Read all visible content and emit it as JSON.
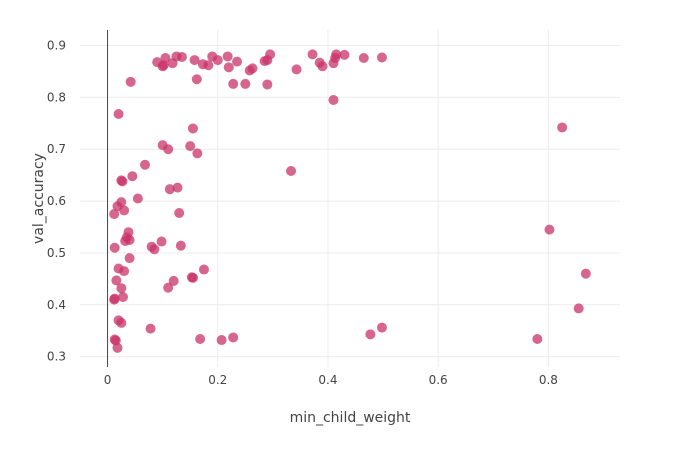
{
  "chart_data": {
    "type": "scatter",
    "title": "",
    "xlabel": "min_child_weight",
    "ylabel": "val_accuracy",
    "xlim": [
      -0.05,
      0.93
    ],
    "ylim": [
      0.28,
      0.93
    ],
    "xticks": [
      0,
      0.2,
      0.4,
      0.6,
      0.8
    ],
    "xtick_labels": [
      "0",
      "0.2",
      "0.4",
      "0.6",
      "0.8"
    ],
    "yticks": [
      0.3,
      0.4,
      0.5,
      0.6,
      0.7,
      0.8,
      0.9
    ],
    "ytick_labels": [
      "0.3",
      "0.4",
      "0.5",
      "0.6",
      "0.7",
      "0.8",
      "0.9"
    ],
    "grid": true,
    "marker_color": "#c9336a",
    "marker_opacity": 0.75,
    "series": [
      {
        "points": [
          [
            0.09,
            0.868
          ],
          [
            0.1,
            0.86
          ],
          [
            0.102,
            0.862
          ],
          [
            0.105,
            0.876
          ],
          [
            0.118,
            0.866
          ],
          [
            0.125,
            0.879
          ],
          [
            0.135,
            0.878
          ],
          [
            0.158,
            0.872
          ],
          [
            0.173,
            0.864
          ],
          [
            0.183,
            0.862
          ],
          [
            0.19,
            0.879
          ],
          [
            0.2,
            0.872
          ],
          [
            0.218,
            0.879
          ],
          [
            0.22,
            0.858
          ],
          [
            0.235,
            0.869
          ],
          [
            0.258,
            0.852
          ],
          [
            0.263,
            0.856
          ],
          [
            0.285,
            0.87
          ],
          [
            0.29,
            0.872
          ],
          [
            0.295,
            0.883
          ],
          [
            0.343,
            0.854
          ],
          [
            0.372,
            0.883
          ],
          [
            0.385,
            0.867
          ],
          [
            0.39,
            0.86
          ],
          [
            0.41,
            0.866
          ],
          [
            0.413,
            0.876
          ],
          [
            0.415,
            0.883
          ],
          [
            0.43,
            0.882
          ],
          [
            0.465,
            0.876
          ],
          [
            0.498,
            0.877
          ],
          [
            0.042,
            0.83
          ],
          [
            0.162,
            0.835
          ],
          [
            0.228,
            0.826
          ],
          [
            0.25,
            0.826
          ],
          [
            0.29,
            0.825
          ],
          [
            0.41,
            0.795
          ],
          [
            0.02,
            0.768
          ],
          [
            0.825,
            0.742
          ],
          [
            0.155,
            0.74
          ],
          [
            0.1,
            0.708
          ],
          [
            0.11,
            0.7
          ],
          [
            0.15,
            0.706
          ],
          [
            0.163,
            0.692
          ],
          [
            0.068,
            0.67
          ],
          [
            0.333,
            0.658
          ],
          [
            0.025,
            0.64
          ],
          [
            0.027,
            0.638
          ],
          [
            0.045,
            0.648
          ],
          [
            0.113,
            0.623
          ],
          [
            0.127,
            0.626
          ],
          [
            0.055,
            0.605
          ],
          [
            0.018,
            0.59
          ],
          [
            0.025,
            0.598
          ],
          [
            0.03,
            0.582
          ],
          [
            0.012,
            0.575
          ],
          [
            0.13,
            0.577
          ],
          [
            0.038,
            0.54
          ],
          [
            0.032,
            0.523
          ],
          [
            0.035,
            0.53
          ],
          [
            0.04,
            0.525
          ],
          [
            0.098,
            0.522
          ],
          [
            0.08,
            0.512
          ],
          [
            0.085,
            0.507
          ],
          [
            0.013,
            0.51
          ],
          [
            0.133,
            0.514
          ],
          [
            0.802,
            0.545
          ],
          [
            0.04,
            0.49
          ],
          [
            0.02,
            0.47
          ],
          [
            0.03,
            0.465
          ],
          [
            0.175,
            0.468
          ],
          [
            0.868,
            0.46
          ],
          [
            0.155,
            0.452
          ],
          [
            0.153,
            0.453
          ],
          [
            0.016,
            0.447
          ],
          [
            0.12,
            0.446
          ],
          [
            0.11,
            0.433
          ],
          [
            0.025,
            0.432
          ],
          [
            0.028,
            0.415
          ],
          [
            0.012,
            0.41
          ],
          [
            0.013,
            0.412
          ],
          [
            0.855,
            0.393
          ],
          [
            0.02,
            0.37
          ],
          [
            0.025,
            0.365
          ],
          [
            0.078,
            0.354
          ],
          [
            0.498,
            0.356
          ],
          [
            0.477,
            0.343
          ],
          [
            0.013,
            0.333
          ],
          [
            0.015,
            0.331
          ],
          [
            0.018,
            0.317
          ],
          [
            0.168,
            0.334
          ],
          [
            0.207,
            0.332
          ],
          [
            0.228,
            0.337
          ],
          [
            0.78,
            0.334
          ]
        ]
      }
    ]
  }
}
